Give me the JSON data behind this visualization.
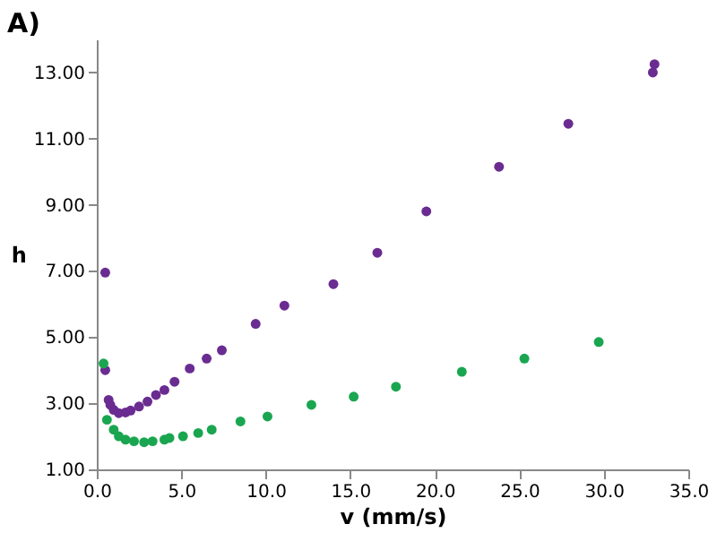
{
  "chart_data": {
    "type": "scatter",
    "xlabel": "v (mm/s)",
    "ylabel": "h",
    "annotations": [
      "A)"
    ],
    "marker": "circle",
    "grid": false,
    "xlim": [
      0,
      35
    ],
    "xticks": [
      {
        "value": 0,
        "label": "0.0"
      },
      {
        "value": 5,
        "label": "5.0"
      },
      {
        "value": 10,
        "label": "10.0"
      },
      {
        "value": 15,
        "label": "15.0"
      },
      {
        "value": 20,
        "label": "20.0"
      },
      {
        "value": 25,
        "label": "25.0"
      },
      {
        "value": 30,
        "label": "30.0"
      },
      {
        "value": 35,
        "label": "35.0"
      }
    ],
    "ylim": [
      1,
      14
    ],
    "yticks": [
      {
        "value": 1,
        "label": "1.00"
      },
      {
        "value": 3,
        "label": "3.00"
      },
      {
        "value": 5,
        "label": "5.00"
      },
      {
        "value": 7,
        "label": "7.00"
      },
      {
        "value": 9,
        "label": "9.00"
      },
      {
        "value": 11,
        "label": "11.00"
      },
      {
        "value": 13,
        "label": "13.00"
      }
    ],
    "series": [
      {
        "color": "#6a2c91",
        "x": [
          0.5,
          0.5,
          0.7,
          0.8,
          1,
          1.3,
          1.7,
          2,
          2.5,
          3,
          3.5,
          4,
          4.6,
          5.5,
          6.5,
          7.4,
          9.4,
          11.1,
          14,
          16.6,
          19.5,
          23.8,
          27.9,
          32.9,
          33
        ],
        "values": [
          6.95,
          4.0,
          3.1,
          2.95,
          2.8,
          2.7,
          2.72,
          2.78,
          2.9,
          3.05,
          3.25,
          3.4,
          3.65,
          4.05,
          4.35,
          4.6,
          5.4,
          5.95,
          6.6,
          7.55,
          8.8,
          10.15,
          11.45,
          13.0,
          13.25
        ]
      },
      {
        "color": "#1aa650",
        "x": [
          0.4,
          0.6,
          1,
          1.3,
          1.7,
          2.2,
          2.8,
          3.3,
          4,
          4.3,
          5.1,
          6,
          6.8,
          8.5,
          10.1,
          12.7,
          15.2,
          17.7,
          21.6,
          25.3,
          29.7
        ],
        "values": [
          4.2,
          2.5,
          2.2,
          2.0,
          1.9,
          1.85,
          1.82,
          1.85,
          1.9,
          1.95,
          2.0,
          2.1,
          2.2,
          2.45,
          2.6,
          2.95,
          3.2,
          3.5,
          3.95,
          4.35,
          4.85
        ]
      }
    ]
  }
}
